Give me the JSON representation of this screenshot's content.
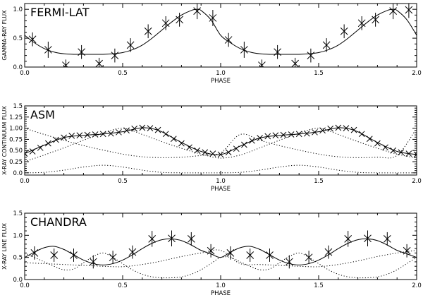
{
  "chart_data": [
    {
      "type": "line",
      "title": "FERMI-LAT",
      "xlabel": "PHASE",
      "ylabel": "GAMMA-RAY FLUX",
      "xlim": [
        0.0,
        2.0
      ],
      "ylim": [
        0.0,
        1.1
      ],
      "xticks": [
        "0.0",
        "0.5",
        "1.0",
        "1.5",
        "2.0"
      ],
      "yticks": [
        "0.0",
        "0.5",
        "1.0"
      ],
      "series": [
        {
          "name": "data",
          "style": "x-errorbar",
          "x": [
            0.04,
            0.12,
            0.21,
            0.29,
            0.38,
            0.46,
            0.54,
            0.63,
            0.72,
            0.79,
            0.88,
            0.96,
            1.04,
            1.12,
            1.21,
            1.29,
            1.38,
            1.46,
            1.54,
            1.63,
            1.72,
            1.79,
            1.88,
            1.96
          ],
          "y": [
            0.48,
            0.3,
            0.03,
            0.26,
            0.06,
            0.2,
            0.38,
            0.62,
            0.76,
            0.82,
            0.97,
            0.85,
            0.47,
            0.3,
            0.03,
            0.26,
            0.06,
            0.2,
            0.38,
            0.62,
            0.76,
            0.82,
            0.97,
            0.99
          ],
          "yerr": [
            0.12,
            0.14,
            0.1,
            0.12,
            0.1,
            0.12,
            0.12,
            0.12,
            0.12,
            0.12,
            0.14,
            0.14,
            0.12,
            0.14,
            0.1,
            0.12,
            0.1,
            0.12,
            0.12,
            0.12,
            0.12,
            0.12,
            0.14,
            0.14
          ]
        },
        {
          "name": "model",
          "style": "solid",
          "x": [
            0.0,
            0.05,
            0.1,
            0.15,
            0.2,
            0.25,
            0.3,
            0.35,
            0.4,
            0.45,
            0.5,
            0.55,
            0.6,
            0.65,
            0.7,
            0.75,
            0.8,
            0.85,
            0.88,
            0.9,
            0.95,
            1.0,
            1.05,
            1.1,
            1.15,
            1.2,
            1.25,
            1.3,
            1.35,
            1.4,
            1.45,
            1.5,
            1.55,
            1.6,
            1.65,
            1.7,
            1.75,
            1.8,
            1.85,
            1.88,
            1.9,
            1.95,
            2.0
          ],
          "y": [
            0.55,
            0.42,
            0.32,
            0.26,
            0.23,
            0.22,
            0.22,
            0.22,
            0.22,
            0.23,
            0.25,
            0.3,
            0.38,
            0.5,
            0.64,
            0.78,
            0.9,
            0.98,
            1.0,
            0.98,
            0.82,
            0.55,
            0.42,
            0.32,
            0.26,
            0.23,
            0.22,
            0.22,
            0.22,
            0.22,
            0.23,
            0.25,
            0.3,
            0.38,
            0.5,
            0.64,
            0.78,
            0.9,
            0.98,
            1.0,
            0.98,
            0.82,
            0.55
          ]
        }
      ]
    },
    {
      "type": "line",
      "title": "ASM",
      "xlabel": "PHASE",
      "ylabel": "X-RAY CONTINUUM FLUX",
      "xlim": [
        0.0,
        2.0
      ],
      "ylim": [
        -0.05,
        1.5
      ],
      "xticks": [
        "0.0",
        "0.5",
        "1.0",
        "1.5",
        "2.0"
      ],
      "yticks": [
        "0.0",
        "0.25",
        "0.50",
        "0.75",
        "1.00",
        "1.25",
        "1.5"
      ],
      "series": [
        {
          "name": "data",
          "style": "x-marker",
          "x": [
            0.0,
            0.04,
            0.08,
            0.12,
            0.16,
            0.2,
            0.24,
            0.28,
            0.32,
            0.36,
            0.4,
            0.44,
            0.48,
            0.52,
            0.56,
            0.6,
            0.64,
            0.68,
            0.72,
            0.76,
            0.8,
            0.84,
            0.88,
            0.92,
            0.96,
            1.0,
            1.04,
            1.08,
            1.12,
            1.16,
            1.2,
            1.24,
            1.28,
            1.32,
            1.36,
            1.4,
            1.44,
            1.48,
            1.52,
            1.56,
            1.6,
            1.64,
            1.68,
            1.72,
            1.76,
            1.8,
            1.84,
            1.88,
            1.92,
            1.96,
            2.0
          ],
          "y": [
            0.43,
            0.48,
            0.56,
            0.66,
            0.74,
            0.79,
            0.83,
            0.84,
            0.85,
            0.86,
            0.87,
            0.88,
            0.91,
            0.95,
            0.99,
            1.01,
            1.0,
            0.96,
            0.87,
            0.76,
            0.66,
            0.57,
            0.5,
            0.46,
            0.43,
            0.41,
            0.46,
            0.54,
            0.63,
            0.72,
            0.78,
            0.82,
            0.84,
            0.85,
            0.86,
            0.87,
            0.88,
            0.91,
            0.95,
            0.99,
            1.01,
            1.0,
            0.96,
            0.87,
            0.76,
            0.66,
            0.57,
            0.5,
            0.46,
            0.43,
            0.41
          ]
        },
        {
          "name": "model",
          "style": "solid",
          "x": [
            0.0,
            0.1,
            0.2,
            0.3,
            0.4,
            0.5,
            0.55,
            0.6,
            0.65,
            0.7,
            0.8,
            0.9,
            1.0,
            1.1,
            1.2,
            1.3,
            1.4,
            1.5,
            1.55,
            1.6,
            1.65,
            1.7,
            1.8,
            1.9,
            2.0
          ],
          "y": [
            0.43,
            0.62,
            0.79,
            0.84,
            0.87,
            0.92,
            0.97,
            1.01,
            0.99,
            0.92,
            0.68,
            0.48,
            0.41,
            0.6,
            0.78,
            0.84,
            0.87,
            0.92,
            0.97,
            1.01,
            0.99,
            0.92,
            0.68,
            0.48,
            0.41
          ]
        },
        {
          "name": "component-1",
          "style": "dotted",
          "x": [
            0.0,
            0.1,
            0.2,
            0.3,
            0.4,
            0.5,
            0.6,
            0.7,
            0.8,
            0.9,
            1.0,
            1.1,
            1.2,
            1.3,
            1.4,
            1.5,
            1.6,
            1.7,
            1.8,
            1.9,
            2.0
          ],
          "y": [
            1.0,
            0.86,
            0.73,
            0.61,
            0.51,
            0.42,
            0.36,
            0.34,
            0.35,
            0.39,
            0.45,
            0.86,
            0.73,
            0.61,
            0.51,
            0.42,
            0.36,
            0.34,
            0.35,
            0.39,
            1.0
          ]
        },
        {
          "name": "component-2",
          "style": "dotted",
          "x": [
            0.0,
            0.1,
            0.2,
            0.3,
            0.4,
            0.5,
            0.6,
            0.7,
            0.8,
            0.9,
            1.0,
            1.1,
            1.2,
            1.3,
            1.4,
            1.5,
            1.6,
            1.7,
            1.8,
            1.9,
            2.0
          ],
          "y": [
            0.25,
            0.4,
            0.56,
            0.73,
            0.89,
            1.0,
            0.86,
            0.7,
            0.55,
            0.42,
            0.33,
            0.4,
            0.56,
            0.73,
            0.89,
            1.0,
            0.86,
            0.7,
            0.55,
            0.42,
            0.33
          ]
        },
        {
          "name": "component-3",
          "style": "dotted",
          "x": [
            0.0,
            0.1,
            0.2,
            0.3,
            0.4,
            0.5,
            0.6,
            0.7,
            0.8,
            0.9,
            1.0,
            1.1,
            1.2,
            1.3,
            1.4,
            1.5,
            1.6,
            1.7,
            1.8,
            1.9,
            2.0
          ],
          "y": [
            0.0,
            0.01,
            0.06,
            0.13,
            0.17,
            0.13,
            0.06,
            0.01,
            0.0,
            0.0,
            0.0,
            0.01,
            0.06,
            0.13,
            0.17,
            0.13,
            0.06,
            0.01,
            0.0,
            0.0,
            0.0
          ]
        }
      ]
    },
    {
      "type": "line",
      "title": "CHANDRA",
      "xlabel": "PHASE",
      "ylabel": "X-RAY LINE FLUX",
      "xlim": [
        0.0,
        2.0
      ],
      "ylim": [
        0.0,
        1.5
      ],
      "xticks": [
        "0.0",
        "0.5",
        "1.0",
        "1.5",
        "2.0"
      ],
      "yticks": [
        "0.0",
        "0.5",
        "1.0",
        "1.5"
      ],
      "series": [
        {
          "name": "data",
          "style": "x-errorbar",
          "x": [
            0.05,
            0.15,
            0.25,
            0.35,
            0.45,
            0.55,
            0.65,
            0.75,
            0.85,
            0.95,
            1.05,
            1.15,
            1.25,
            1.35,
            1.45,
            1.55,
            1.65,
            1.75,
            1.85,
            1.95
          ],
          "y": [
            0.6,
            0.55,
            0.55,
            0.4,
            0.5,
            0.62,
            0.92,
            0.93,
            0.92,
            0.65,
            0.6,
            0.55,
            0.55,
            0.4,
            0.5,
            0.62,
            0.92,
            0.93,
            0.92,
            0.65
          ],
          "yerr": [
            0.15,
            0.15,
            0.15,
            0.15,
            0.15,
            0.15,
            0.18,
            0.18,
            0.15,
            0.15,
            0.15,
            0.15,
            0.15,
            0.15,
            0.15,
            0.15,
            0.18,
            0.18,
            0.15,
            0.15
          ]
        },
        {
          "name": "model",
          "style": "solid",
          "x": [
            0.0,
            0.05,
            0.1,
            0.15,
            0.2,
            0.25,
            0.3,
            0.35,
            0.4,
            0.45,
            0.5,
            0.55,
            0.6,
            0.65,
            0.7,
            0.75,
            0.8,
            0.85,
            0.9,
            0.95,
            1.0,
            1.05,
            1.1,
            1.15,
            1.2,
            1.25,
            1.3,
            1.35,
            1.4,
            1.45,
            1.5,
            1.55,
            1.6,
            1.65,
            1.7,
            1.75,
            1.8,
            1.85,
            1.9,
            1.95,
            2.0
          ],
          "y": [
            0.5,
            0.62,
            0.72,
            0.75,
            0.68,
            0.56,
            0.44,
            0.36,
            0.33,
            0.36,
            0.44,
            0.56,
            0.7,
            0.82,
            0.9,
            0.92,
            0.88,
            0.78,
            0.66,
            0.58,
            0.5,
            0.62,
            0.72,
            0.75,
            0.68,
            0.56,
            0.44,
            0.36,
            0.33,
            0.36,
            0.44,
            0.56,
            0.7,
            0.82,
            0.9,
            0.92,
            0.88,
            0.78,
            0.66,
            0.58,
            0.5
          ]
        },
        {
          "name": "component-1",
          "style": "dotted",
          "x": [
            0.0,
            0.1,
            0.2,
            0.3,
            0.4,
            0.5,
            0.6,
            0.7,
            0.8,
            0.9,
            1.0,
            1.1,
            1.2,
            1.3,
            1.4,
            1.5,
            1.6,
            1.7,
            1.8,
            1.9,
            2.0
          ],
          "y": [
            0.38,
            0.36,
            0.34,
            0.32,
            0.3,
            0.29,
            0.34,
            0.42,
            0.52,
            0.6,
            0.66,
            0.36,
            0.34,
            0.32,
            0.3,
            0.29,
            0.34,
            0.42,
            0.52,
            0.6,
            0.66
          ]
        },
        {
          "name": "component-2",
          "style": "dotted",
          "x": [
            0.0,
            0.05,
            0.1,
            0.15,
            0.2,
            0.25,
            0.3,
            0.35,
            0.4,
            0.45,
            0.5,
            0.55,
            0.6,
            0.65,
            0.7,
            0.75,
            0.8,
            0.85,
            0.9,
            0.95,
            1.0,
            1.05,
            1.1,
            1.15,
            1.2,
            1.25,
            1.3,
            1.35,
            1.4,
            1.45,
            1.5,
            1.55,
            1.6,
            1.65,
            1.7,
            1.75,
            1.8,
            1.85,
            1.9,
            1.95,
            2.0
          ],
          "y": [
            0.6,
            0.5,
            0.4,
            0.3,
            0.22,
            0.24,
            0.38,
            0.52,
            0.6,
            0.5,
            0.36,
            0.22,
            0.12,
            0.06,
            0.04,
            0.04,
            0.06,
            0.12,
            0.22,
            0.36,
            0.5,
            0.5,
            0.4,
            0.3,
            0.22,
            0.24,
            0.38,
            0.52,
            0.6,
            0.5,
            0.36,
            0.22,
            0.12,
            0.06,
            0.04,
            0.04,
            0.06,
            0.12,
            0.22,
            0.36,
            0.5
          ]
        }
      ]
    }
  ]
}
